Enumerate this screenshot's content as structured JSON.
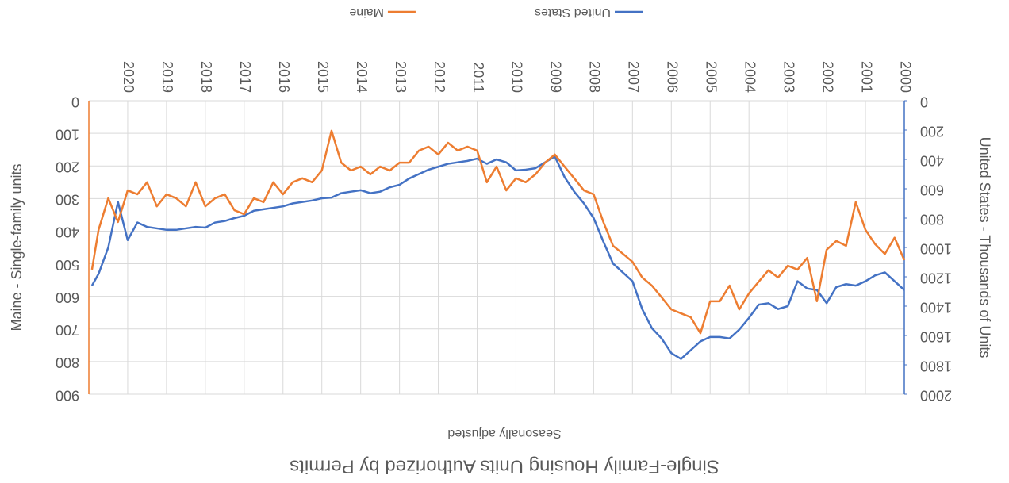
{
  "chart_data": {
    "type": "line",
    "title": "Single-Family Housing Units Authorized by Permits",
    "subtitle": "Seasonally adjusted",
    "y_label": "United States - Thousands of Units",
    "y2_label": "Maine - Single-family units",
    "x": [
      2000,
      2000.25,
      2000.5,
      2000.75,
      2001,
      2001.25,
      2001.5,
      2001.75,
      2002,
      2002.25,
      2002.5,
      2002.75,
      2003,
      2003.25,
      2003.5,
      2003.75,
      2004,
      2004.25,
      2004.5,
      2004.75,
      2005,
      2005.25,
      2005.5,
      2005.75,
      2006,
      2006.25,
      2006.5,
      2006.75,
      2007,
      2007.25,
      2007.5,
      2007.75,
      2008,
      2008.25,
      2008.5,
      2008.75,
      2009,
      2009.25,
      2009.5,
      2009.75,
      2010,
      2010.25,
      2010.5,
      2010.75,
      2011,
      2011.25,
      2011.5,
      2011.75,
      2012,
      2012.25,
      2012.5,
      2012.75,
      2013,
      2013.25,
      2013.5,
      2013.75,
      2014,
      2014.25,
      2014.5,
      2014.75,
      2015,
      2015.25,
      2015.5,
      2015.75,
      2016,
      2016.25,
      2016.5,
      2016.75,
      2017,
      2017.25,
      2017.5,
      2017.75,
      2018,
      2018.25,
      2018.5,
      2018.75,
      2019,
      2019.25,
      2019.5,
      2019.75,
      2020,
      2020.25,
      2020.5,
      2020.75,
      2020.92
    ],
    "series": [
      {
        "name": "United States",
        "color": "#4472c4",
        "axis": "y",
        "values": [
          1290,
          1230,
          1170,
          1190,
          1230,
          1260,
          1250,
          1270,
          1380,
          1290,
          1280,
          1230,
          1400,
          1420,
          1380,
          1390,
          1480,
          1560,
          1620,
          1610,
          1610,
          1640,
          1700,
          1760,
          1720,
          1620,
          1550,
          1420,
          1230,
          1170,
          1110,
          960,
          800,
          700,
          620,
          520,
          380,
          420,
          460,
          470,
          475,
          420,
          400,
          430,
          395,
          410,
          420,
          430,
          450,
          470,
          500,
          530,
          573,
          590,
          620,
          630,
          610,
          620,
          630,
          660,
          665,
          680,
          690,
          700,
          720,
          730,
          740,
          750,
          784,
          800,
          820,
          830,
          865,
          860,
          870,
          880,
          880,
          870,
          860,
          830,
          950,
          690,
          1000,
          1180,
          1260
        ]
      },
      {
        "name": "Maine",
        "color": "#ed7d31",
        "axis": "y2",
        "values": [
          489,
          420,
          470,
          440,
          396,
          311,
          445,
          430,
          457,
          615,
          482,
          518,
          506,
          542,
          520,
          555,
          591,
          640,
          567,
          615,
          615,
          713,
          664,
          652,
          640,
          603,
          567,
          542,
          494,
          469,
          445,
          372,
          287,
          275,
          238,
          202,
          165,
          190,
          226,
          250,
          238,
          275,
          202,
          250,
          153,
          141,
          153,
          129,
          165,
          141,
          153,
          190,
          190,
          214,
          202,
          226,
          202,
          214,
          190,
          92,
          214,
          250,
          238,
          250,
          287,
          250,
          311,
          299,
          348,
          336,
          287,
          299,
          324,
          250,
          324,
          299,
          287,
          324,
          250,
          287,
          275,
          372,
          299,
          396,
          518
        ]
      }
    ],
    "xlim": [
      2000,
      2021
    ],
    "xticks": [
      2000,
      2001,
      2002,
      2003,
      2004,
      2005,
      2006,
      2007,
      2008,
      2009,
      2010,
      2011,
      2012,
      2013,
      2014,
      2015,
      2016,
      2017,
      2018,
      2019,
      2020
    ],
    "ylim": [
      0,
      2000
    ],
    "yticks": [
      0,
      200,
      400,
      600,
      800,
      1000,
      1200,
      1400,
      1600,
      1800,
      2000
    ],
    "y2lim": [
      0,
      900
    ],
    "y2ticks": [
      0,
      100,
      200,
      300,
      400,
      500,
      600,
      700,
      800,
      900
    ],
    "grid": true,
    "legend": "bottom"
  }
}
